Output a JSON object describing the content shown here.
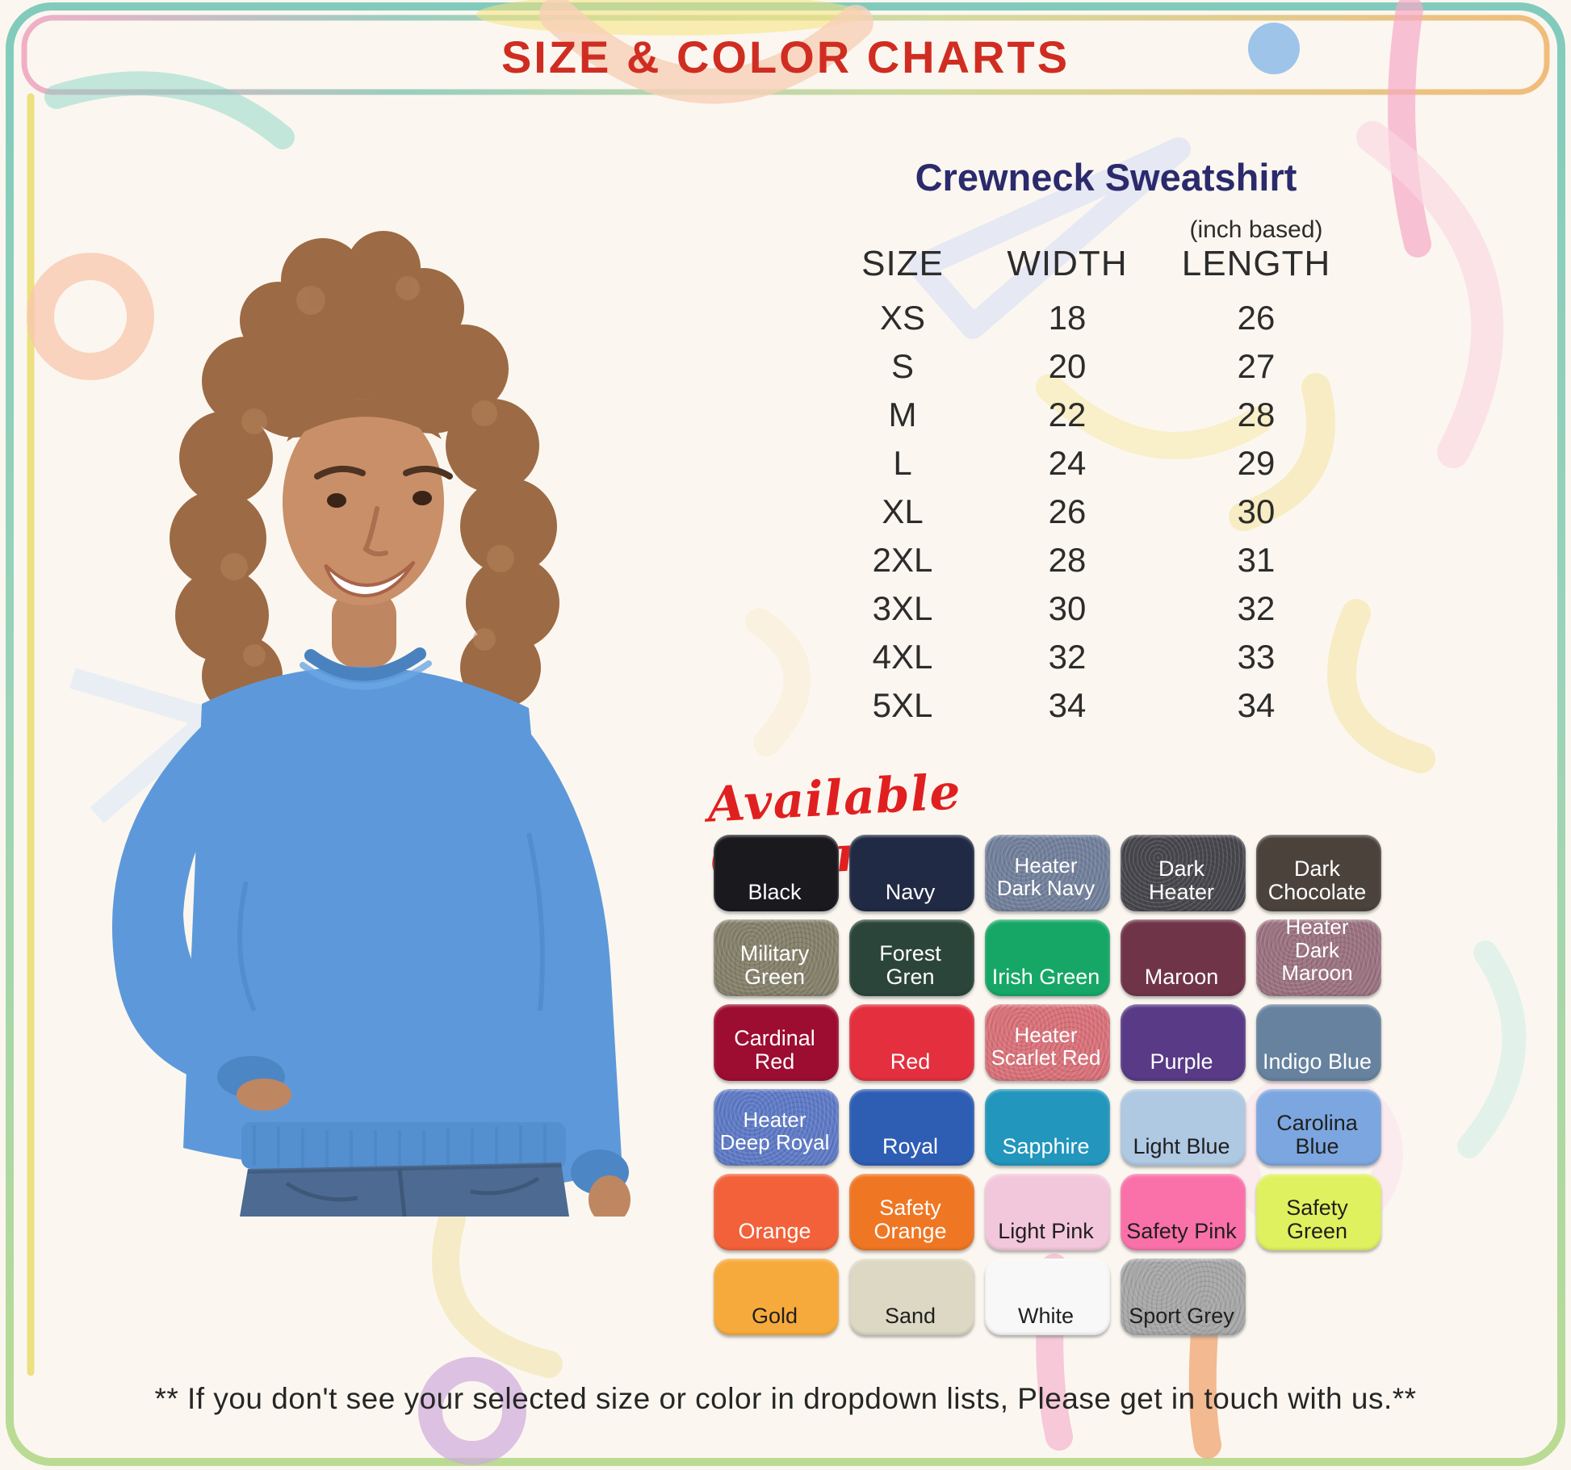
{
  "header": {
    "title": "SIZE & COLOR CHARTS"
  },
  "product": {
    "title": "Crewneck Sweatshirt"
  },
  "size_table": {
    "unit_note": "(inch based)",
    "columns": [
      "SIZE",
      "WIDTH",
      "LENGTH"
    ],
    "rows": [
      [
        "XS",
        "18",
        "26"
      ],
      [
        "S",
        "20",
        "27"
      ],
      [
        "M",
        "22",
        "28"
      ],
      [
        "L",
        "24",
        "29"
      ],
      [
        "XL",
        "26",
        "30"
      ],
      [
        "2XL",
        "28",
        "31"
      ],
      [
        "3XL",
        "30",
        "32"
      ],
      [
        "4XL",
        "32",
        "33"
      ],
      [
        "5XL",
        "34",
        "34"
      ]
    ]
  },
  "colors": {
    "heading": "Available Colors:",
    "swatches": [
      {
        "name": "Black",
        "hex": "#1a1a1e",
        "text": "#ffffff",
        "lines": [
          "Black"
        ],
        "heather": false
      },
      {
        "name": "Navy",
        "hex": "#202a44",
        "text": "#ffffff",
        "lines": [
          "Navy"
        ],
        "heather": false
      },
      {
        "name": "Heater Dark Navy",
        "hex": "#72809b",
        "text": "#ffffff",
        "lines": [
          "Heater",
          "Dark Navy"
        ],
        "heather": true
      },
      {
        "name": "Dark Heater",
        "hex": "#46464c",
        "text": "#ffffff",
        "lines": [
          "Dark Heater"
        ],
        "heather": true
      },
      {
        "name": "Dark Chocolate",
        "hex": "#4b423c",
        "text": "#ffffff",
        "lines": [
          "Dark Chocolate"
        ],
        "heather": false
      },
      {
        "name": "Military Green",
        "hex": "#84806a",
        "text": "#ffffff",
        "lines": [
          "Military Green"
        ],
        "heather": true
      },
      {
        "name": "Forest Gren",
        "hex": "#2c453a",
        "text": "#ffffff",
        "lines": [
          "Forest Gren"
        ],
        "heather": false
      },
      {
        "name": "Irish Green",
        "hex": "#16a766",
        "text": "#ffffff",
        "lines": [
          "Irish Green"
        ],
        "heather": false
      },
      {
        "name": "Maroon",
        "hex": "#703449",
        "text": "#ffffff",
        "lines": [
          "Maroon"
        ],
        "heather": false
      },
      {
        "name": "Heater Dark Maroon",
        "hex": "#9b7280",
        "text": "#ffffff",
        "lines": [
          "Heater",
          "Dark Maroon"
        ],
        "heather": true
      },
      {
        "name": "Cardinal Red",
        "hex": "#9d0d31",
        "text": "#ffffff",
        "lines": [
          "Cardinal Red"
        ],
        "heather": false
      },
      {
        "name": "Red",
        "hex": "#e42f3e",
        "text": "#ffffff",
        "lines": [
          "Red"
        ],
        "heather": false
      },
      {
        "name": "Heater Scarlet Red",
        "hex": "#d97179",
        "text": "#ffffff",
        "lines": [
          "Heater",
          "Scarlet Red"
        ],
        "heather": true
      },
      {
        "name": "Purple",
        "hex": "#583a86",
        "text": "#ffffff",
        "lines": [
          "Purple"
        ],
        "heather": false
      },
      {
        "name": "Indigo Blue",
        "hex": "#66829e",
        "text": "#ffffff",
        "lines": [
          "Indigo Blue"
        ],
        "heather": false
      },
      {
        "name": "Heater Deep Royal",
        "hex": "#5e7ac6",
        "text": "#ffffff",
        "lines": [
          "Heater",
          "Deep Royal"
        ],
        "heather": true
      },
      {
        "name": "Royal",
        "hex": "#2e5db4",
        "text": "#ffffff",
        "lines": [
          "Royal"
        ],
        "heather": false
      },
      {
        "name": "Sapphire",
        "hex": "#2296bc",
        "text": "#ffffff",
        "lines": [
          "Sapphire"
        ],
        "heather": false
      },
      {
        "name": "Light Blue",
        "hex": "#afc9e3",
        "text": "#1f1f1f",
        "lines": [
          "Light Blue"
        ],
        "heather": false
      },
      {
        "name": "Carolina Blue",
        "hex": "#7ca6df",
        "text": "#1f1f1f",
        "lines": [
          "Carolina Blue"
        ],
        "heather": false
      },
      {
        "name": "Orange",
        "hex": "#f2613a",
        "text": "#ffffff",
        "lines": [
          "Orange"
        ],
        "heather": false
      },
      {
        "name": "Safety Orange",
        "hex": "#ef7623",
        "text": "#ffffff",
        "lines": [
          "Safety Orange"
        ],
        "heather": false
      },
      {
        "name": "Light Pink",
        "hex": "#f3c7db",
        "text": "#1f1f1f",
        "lines": [
          "Light Pink"
        ],
        "heather": false
      },
      {
        "name": "Safety Pink",
        "hex": "#f971a8",
        "text": "#1f1f1f",
        "lines": [
          "Safety Pink"
        ],
        "heather": false
      },
      {
        "name": "Safety Green",
        "hex": "#e0f15f",
        "text": "#1f1f1f",
        "lines": [
          "Safety Green"
        ],
        "heather": false
      },
      {
        "name": "Gold",
        "hex": "#f7aa3c",
        "text": "#1f1f1f",
        "lines": [
          "Gold"
        ],
        "heather": false
      },
      {
        "name": "Sand",
        "hex": "#dcd8c3",
        "text": "#1f1f1f",
        "lines": [
          "Sand"
        ],
        "heather": false
      },
      {
        "name": "White",
        "hex": "#f8f8f8",
        "text": "#1f1f1f",
        "lines": [
          "White"
        ],
        "heather": false
      },
      {
        "name": "Sport Grey",
        "hex": "#a7a7a7",
        "text": "#1f1f1f",
        "lines": [
          "Sport Grey"
        ],
        "heather": true
      }
    ]
  },
  "footer": {
    "note": "** If you don't see your selected size or color in dropdown lists, Please get in touch with us.**"
  },
  "accent_colors": {
    "title_red": "#d02d22",
    "heading_navy": "#2b2a6c",
    "script_red": "#e02020",
    "sweatshirt_blue": "#5d99da",
    "background_cream": "#fbf7f0"
  }
}
